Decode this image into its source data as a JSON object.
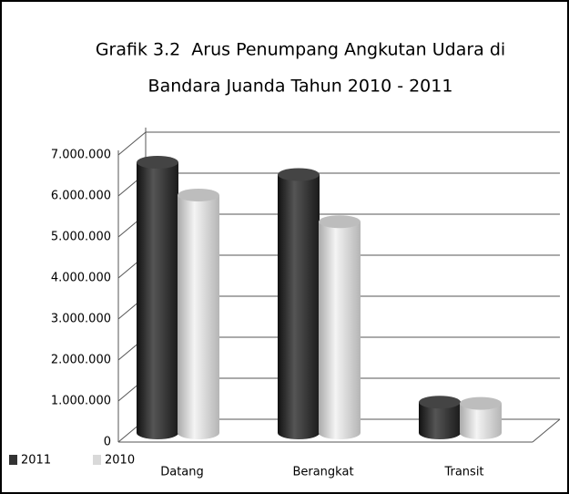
{
  "chart_data": {
    "type": "bar3d",
    "title": [
      "Grafik 3.2  Arus Penumpang Angkutan Udara di",
      "Bandara Juanda Tahun 2010 - 2011"
    ],
    "categories": [
      "Datang",
      "Berangkat",
      "Transit"
    ],
    "series": [
      {
        "name": "2011",
        "color": "#333333",
        "values": [
          6600000,
          6300000,
          750000
        ]
      },
      {
        "name": "2010",
        "color": "#d9d9d9",
        "values": [
          5800000,
          5150000,
          720000
        ]
      }
    ],
    "ylim": [
      0,
      7000000
    ],
    "yticks": [
      0,
      {
        "value": 1000000,
        "label": "1.000.000"
      },
      {
        "value": 2000000,
        "label": "2.000.000"
      },
      {
        "value": 3000000,
        "label": "3.000.000"
      },
      {
        "value": 4000000,
        "label": "4.000.000"
      },
      {
        "value": 5000000,
        "label": "5.000.000"
      },
      {
        "value": 6000000,
        "label": "6.000.000"
      },
      {
        "value": 7000000,
        "label": "7.000.000"
      }
    ],
    "grid": true,
    "legend": "bottom-left"
  }
}
